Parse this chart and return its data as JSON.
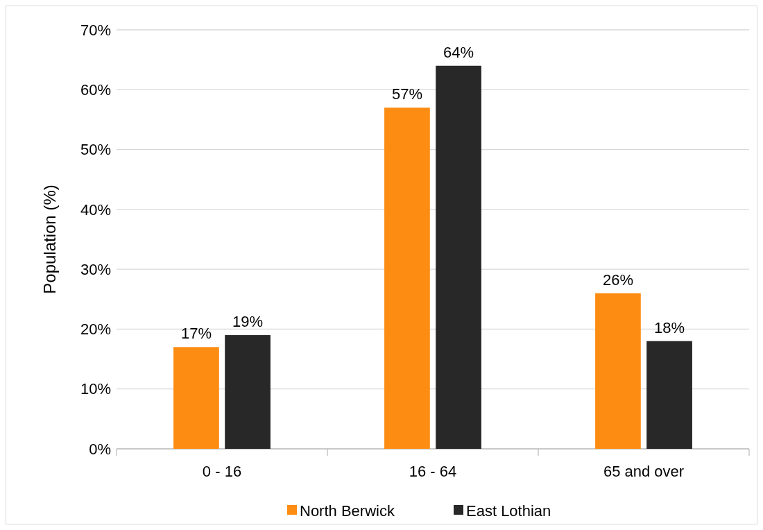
{
  "chart_data": {
    "type": "bar",
    "ylabel": "Population (%)",
    "categories": [
      "0 - 16",
      "16 - 64",
      "65 and over"
    ],
    "series": [
      {
        "name": "North Berwick",
        "color": "#fd8c13",
        "values": [
          17,
          57,
          26
        ],
        "value_labels": [
          "17%",
          "57%",
          "26%"
        ]
      },
      {
        "name": "East Lothian",
        "color": "#282828",
        "values": [
          19,
          64,
          18
        ],
        "value_labels": [
          "19%",
          "64%",
          "18%"
        ]
      }
    ],
    "ylim": [
      0,
      70
    ],
    "yticks": [
      {
        "value": 0,
        "label": "0%"
      },
      {
        "value": 10,
        "label": "10%"
      },
      {
        "value": 20,
        "label": "20%"
      },
      {
        "value": 30,
        "label": "30%"
      },
      {
        "value": 40,
        "label": "40%"
      },
      {
        "value": 50,
        "label": "50%"
      },
      {
        "value": 60,
        "label": "60%"
      },
      {
        "value": 70,
        "label": "70%"
      }
    ],
    "grid": "y",
    "legend": "bottom"
  }
}
